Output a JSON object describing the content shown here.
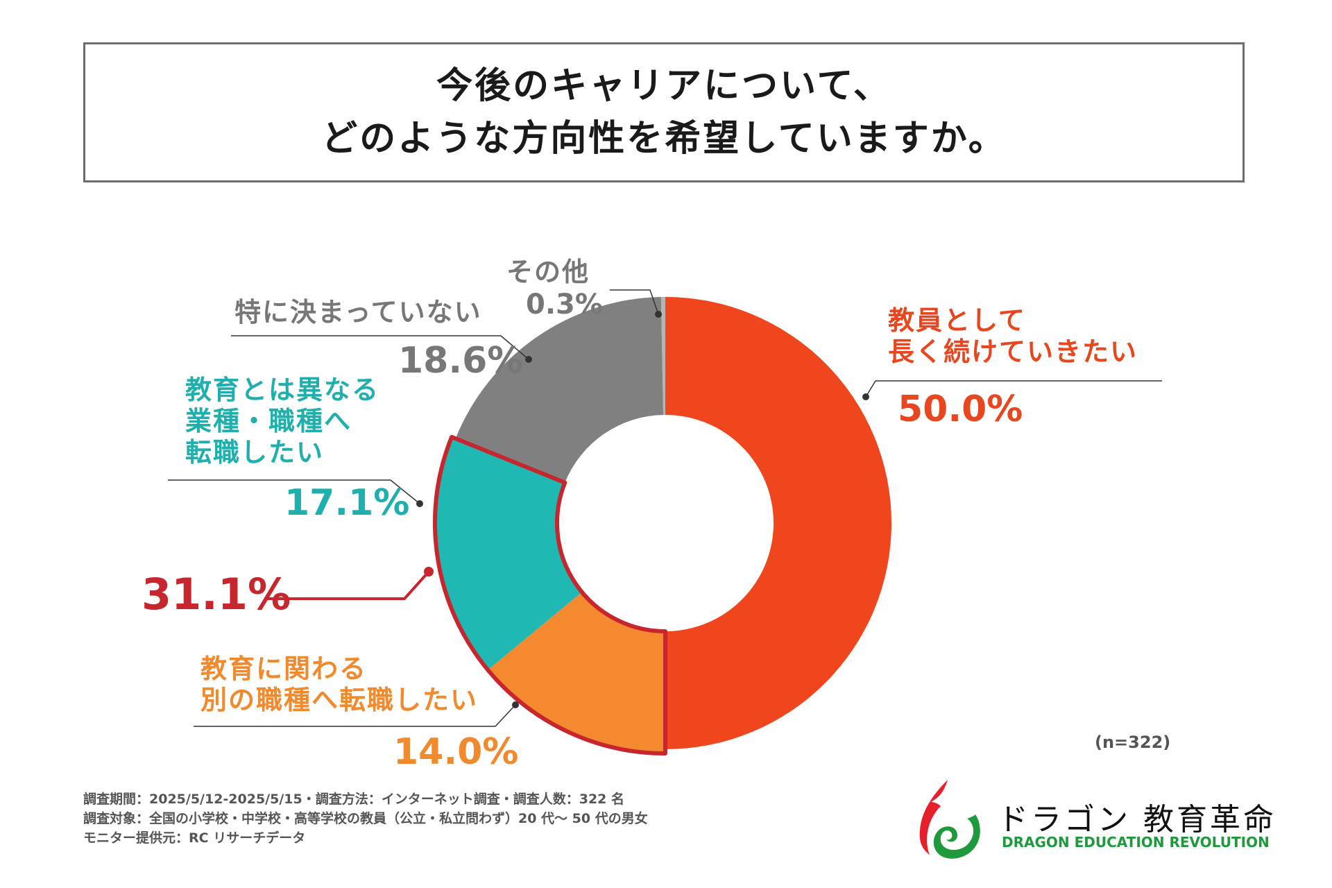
{
  "title": {
    "line1": "今後のキャリアについて、",
    "line2": "どのような方向性を希望していますか。"
  },
  "chart_data": {
    "type": "pie",
    "style": "donut",
    "total_n_label": "(n=322)",
    "slices": [
      {
        "label": [
          "教員として",
          "長く続けていきたい"
        ],
        "value": 50.0,
        "value_label": "50.0%",
        "color": "#f0461e",
        "text_color": "#e8461f"
      },
      {
        "label": [
          "教育に関わる",
          "別の職種へ転職したい"
        ],
        "value": 14.0,
        "value_label": "14.0%",
        "color": "#f5892f",
        "text_color": "#f08a2c"
      },
      {
        "label": [
          "教育とは異なる",
          "業種・職種へ",
          "転職したい"
        ],
        "value": 17.1,
        "value_label": "17.1%",
        "color": "#20b8b3",
        "text_color": "#1fb0ad"
      },
      {
        "label": [
          "特に決まっていない"
        ],
        "value": 18.6,
        "value_label": "18.6%",
        "color": "#808080",
        "text_color": "#777777"
      },
      {
        "label": [
          "その他"
        ],
        "value": 0.3,
        "value_label": "0.3%",
        "color": "#b5b5b5",
        "text_color": "#777777"
      }
    ],
    "highlight": {
      "slices": [
        1,
        2
      ],
      "value_label": "31.1%",
      "color": "#c8262e"
    }
  },
  "footer": {
    "line1": "調査期間：2025/5/12-2025/5/15・調査方法：インターネット調査・調査人数：322 名",
    "line2": "調査対象：全国の小学校・中学校・高等学校の教員（公立・私立問わず）20 代～ 50 代の男女",
    "line3": "モニター提供元：RC リサーチデータ"
  },
  "logo": {
    "jp": "ドラゴン 教育革命",
    "en": "DRAGON EDUCATION REVOLUTION"
  }
}
